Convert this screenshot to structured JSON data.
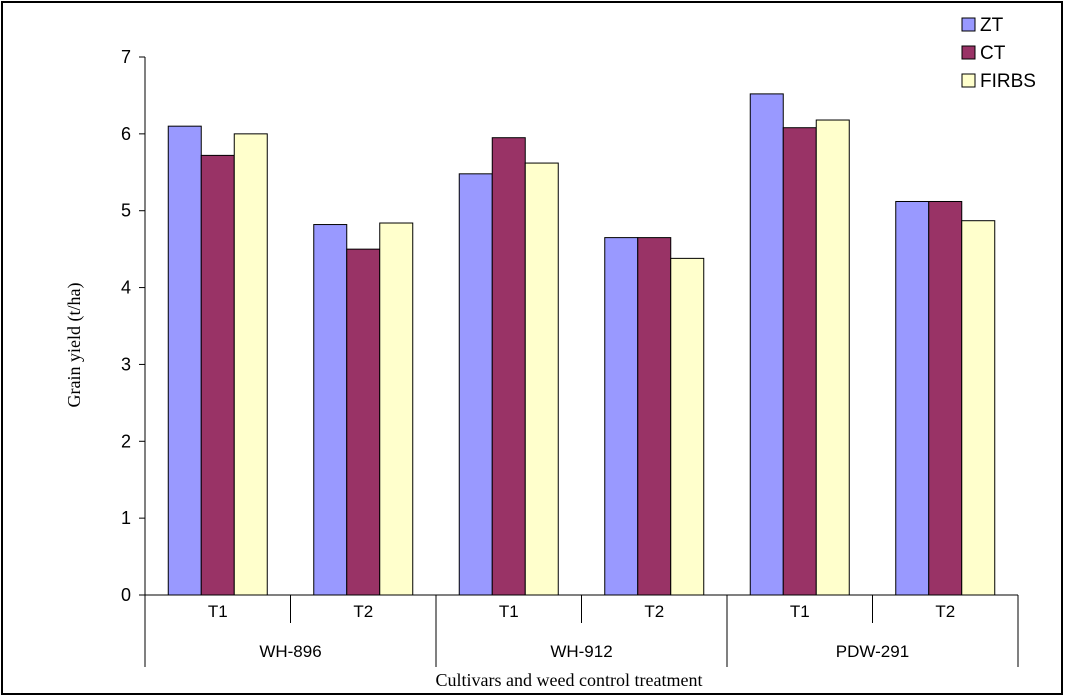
{
  "chart_data": {
    "type": "bar",
    "xlabel": "Cultivars and weed control treatment",
    "ylabel": "Grain yield (t/ha)",
    "ylim": [
      0,
      7
    ],
    "yticks": [
      0,
      1,
      2,
      3,
      4,
      5,
      6,
      7
    ],
    "grid": false,
    "legend_position": "top-right",
    "groups": [
      "WH-896",
      "WH-912",
      "PDW-291"
    ],
    "categories": [
      "T1",
      "T2",
      "T1",
      "T2",
      "T1",
      "T2"
    ],
    "series": [
      {
        "name": "ZT",
        "color": "#9999ff",
        "values": [
          6.1,
          4.82,
          5.48,
          4.65,
          6.52,
          5.12
        ]
      },
      {
        "name": "CT",
        "color": "#993366",
        "values": [
          5.72,
          4.5,
          5.95,
          4.65,
          6.08,
          5.12
        ]
      },
      {
        "name": "FIRBS",
        "color": "#ffffcc",
        "values": [
          6.0,
          4.84,
          5.62,
          4.38,
          6.18,
          4.87
        ]
      }
    ]
  }
}
